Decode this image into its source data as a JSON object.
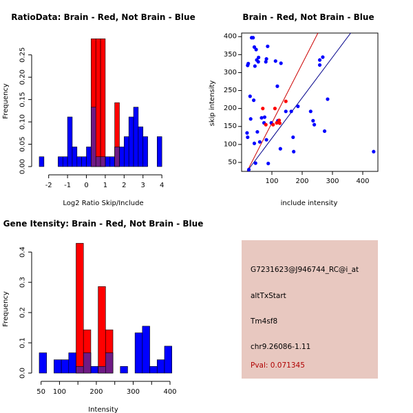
{
  "colors": {
    "red": "#ff0000",
    "blue": "#0000ff",
    "overlap": "#6f1a84",
    "red_line": "#cc0000",
    "blue_line": "#00008b",
    "info_bg": "#e8c8c0",
    "pval": "#b00000"
  },
  "chart_data": [
    {
      "type": "bar",
      "title": "RatioData: Brain - Red, Not Brain - Blue",
      "xlabel": "Log2 Ratio Skip/Include",
      "ylabel": "Frequency",
      "xlim": [
        -2.5,
        4.25
      ],
      "ylim": [
        0,
        0.285
      ],
      "xticks": [
        -2,
        -1,
        0,
        1,
        2,
        3,
        4
      ],
      "yticks": [
        0.0,
        0.05,
        0.1,
        0.15,
        0.2,
        0.25
      ],
      "yticklabels": [
        "0.00",
        "0.05",
        "0.10",
        "0.15",
        "0.20",
        "0.25"
      ],
      "series": [
        {
          "name": "Not Brain",
          "color": "blue",
          "bins": [
            [
              -2.5,
              -2.25,
              0.022
            ],
            [
              -1.5,
              -1.25,
              0.022
            ],
            [
              -1.25,
              -1.0,
              0.022
            ],
            [
              -1.0,
              -0.75,
              0.111
            ],
            [
              -0.75,
              -0.5,
              0.044
            ],
            [
              -0.5,
              -0.25,
              0.022
            ],
            [
              -0.25,
              0.0,
              0.022
            ],
            [
              0.0,
              0.25,
              0.044
            ],
            [
              0.25,
              0.5,
              0.133
            ],
            [
              0.5,
              0.75,
              0.022
            ],
            [
              0.75,
              1.0,
              0.022
            ],
            [
              1.0,
              1.25,
              0.022
            ],
            [
              1.25,
              1.5,
              0.022
            ],
            [
              1.5,
              1.75,
              0.044
            ],
            [
              1.75,
              2.0,
              0.044
            ],
            [
              2.0,
              2.25,
              0.067
            ],
            [
              2.25,
              2.5,
              0.111
            ],
            [
              2.5,
              2.75,
              0.133
            ],
            [
              2.75,
              3.0,
              0.089
            ],
            [
              3.0,
              3.25,
              0.067
            ],
            [
              3.75,
              4.0,
              0.067
            ]
          ]
        },
        {
          "name": "Brain",
          "color": "red",
          "bins": [
            [
              0.25,
              0.5,
              0.286
            ],
            [
              0.5,
              0.75,
              0.286
            ],
            [
              0.75,
              1.0,
              0.286
            ],
            [
              1.5,
              1.75,
              0.143
            ]
          ]
        }
      ]
    },
    {
      "type": "scatter",
      "title": "Brain - Red, Not Brain - Blue",
      "xlabel": "include intensity",
      "ylabel": "skip intensity",
      "xlim": [
        0,
        450
      ],
      "ylim": [
        25,
        410
      ],
      "xticks": [
        100,
        200,
        300,
        400
      ],
      "yticks": [
        50,
        100,
        150,
        200,
        250,
        300,
        350,
        400
      ],
      "series": [
        {
          "name": "Not Brain",
          "color": "blue",
          "points": [
            [
              20,
              320
            ],
            [
              22,
              325
            ],
            [
              18,
              132
            ],
            [
              20,
              120
            ],
            [
              28,
              234
            ],
            [
              33,
              397
            ],
            [
              38,
              397
            ],
            [
              42,
              371
            ],
            [
              48,
              364
            ],
            [
              50,
              335
            ],
            [
              56,
              342
            ],
            [
              44,
              318
            ],
            [
              55,
              330
            ],
            [
              80,
              330
            ],
            [
              86,
              373
            ],
            [
              82,
              338
            ],
            [
              112,
              332
            ],
            [
              118,
              262
            ],
            [
              130,
              326
            ],
            [
              146,
              192
            ],
            [
              120,
              166
            ],
            [
              128,
              88
            ],
            [
              82,
              113
            ],
            [
              74,
              160
            ],
            [
              98,
              160
            ],
            [
              66,
              174
            ],
            [
              42,
              103
            ],
            [
              60,
              107
            ],
            [
              76,
              176
            ],
            [
              30,
              171
            ],
            [
              40,
              223
            ],
            [
              88,
              47
            ],
            [
              46,
              48
            ],
            [
              24,
              30
            ],
            [
              52,
              135
            ],
            [
              186,
              206
            ],
            [
              170,
              120
            ],
            [
              172,
              80
            ],
            [
              164,
              192
            ],
            [
              228,
              192
            ],
            [
              236,
              166
            ],
            [
              240,
              155
            ],
            [
              258,
              335
            ],
            [
              268,
              343
            ],
            [
              258,
              321
            ],
            [
              274,
              137
            ],
            [
              284,
              226
            ],
            [
              436,
              80
            ]
          ]
        },
        {
          "name": "Brain",
          "color": "red",
          "points": [
            [
              70,
              200
            ],
            [
              110,
              200
            ],
            [
              80,
              155
            ],
            [
              146,
              220
            ],
            [
              124,
              167
            ],
            [
              126,
              159
            ],
            [
              116,
              160
            ],
            [
              104,
              155
            ]
          ]
        }
      ],
      "lines": [
        {
          "color": "red_line",
          "from": [
            18,
            25
          ],
          "to": [
            252,
            410
          ]
        },
        {
          "color": "blue_line",
          "from": [
            18,
            25
          ],
          "to": [
            360,
            410
          ]
        }
      ]
    },
    {
      "type": "bar",
      "title": "Gene Itensity: Brain - Red, Not Brain - Blue",
      "xlabel": "Intensity",
      "ylabel": "Frequency",
      "xlim": [
        45,
        400
      ],
      "ylim": [
        0,
        0.43
      ],
      "xticks": [
        50,
        100,
        150,
        200,
        250,
        300,
        350,
        400
      ],
      "xticklabels": [
        "50",
        "100",
        "",
        "200",
        "",
        "300",
        "",
        "400"
      ],
      "yticks": [
        0.0,
        0.1,
        0.2,
        0.3,
        0.4
      ],
      "yticklabels": [
        "0.0",
        "0.1",
        "0.2",
        "0.3",
        "0.4"
      ],
      "series": [
        {
          "name": "Not Brain",
          "color": "blue",
          "bins": [
            [
              45,
              65,
              0.067
            ],
            [
              85,
              105,
              0.044
            ],
            [
              105,
              125,
              0.044
            ],
            [
              125,
              145,
              0.067
            ],
            [
              145,
              165,
              0.022
            ],
            [
              165,
              185,
              0.067
            ],
            [
              185,
              205,
              0.022
            ],
            [
              205,
              225,
              0.022
            ],
            [
              225,
              245,
              0.067
            ],
            [
              265,
              285,
              0.022
            ],
            [
              305,
              325,
              0.133
            ],
            [
              325,
              345,
              0.155
            ],
            [
              345,
              365,
              0.022
            ],
            [
              365,
              385,
              0.044
            ],
            [
              385,
              405,
              0.089
            ]
          ]
        },
        {
          "name": "Brain",
          "color": "red",
          "bins": [
            [
              145,
              165,
              0.429
            ],
            [
              165,
              185,
              0.143
            ],
            [
              205,
              225,
              0.286
            ],
            [
              225,
              245,
              0.143
            ]
          ]
        }
      ]
    }
  ],
  "info": {
    "probe": "G7231623@J946744_RC@i_at",
    "event": "altTxStart",
    "gene": "Tm4sf8",
    "location": "chr9.26086-1.11",
    "pval": "Pval: 0.071345"
  }
}
